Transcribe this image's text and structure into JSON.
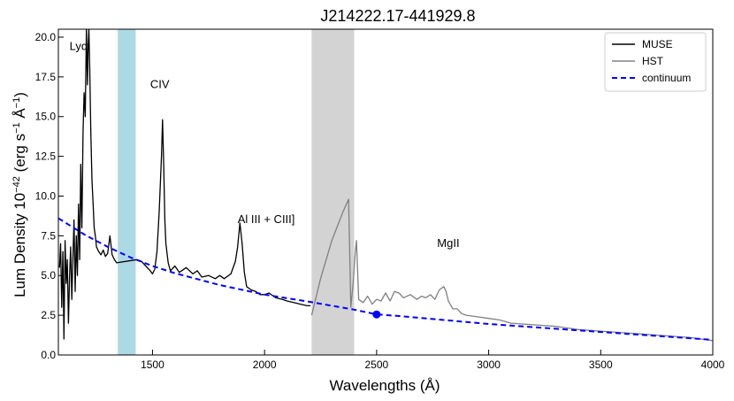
{
  "chart_data": {
    "type": "line",
    "title": "J214222.17-441929.8",
    "xlabel": "Wavelengths (Å)",
    "ylabel_main": "Lum Density 10",
    "ylabel_exp": "−42",
    "ylabel_units_pre": " (erg s",
    "ylabel_units_exp1": "−1",
    "ylabel_units_mid": " Å",
    "ylabel_units_exp2": "−1",
    "ylabel_units_post": ")",
    "xlim": [
      1080,
      4000
    ],
    "ylim": [
      0,
      20.5
    ],
    "xticks": [
      1500,
      2000,
      2500,
      3000,
      3500,
      4000
    ],
    "yticks": [
      0.0,
      2.5,
      5.0,
      7.5,
      10.0,
      12.5,
      15.0,
      17.5,
      20.0
    ],
    "ytick_labels": [
      "0.0",
      "2.5",
      "5.0",
      "7.5",
      "10.0",
      "12.5",
      "15.0",
      "17.5",
      "20.0"
    ],
    "legend_position": "top-right",
    "shaded_regions": [
      {
        "x0": 1345,
        "x1": 1425,
        "color": "#add8e6"
      },
      {
        "x0": 2210,
        "x1": 2400,
        "color": "#d3d3d3"
      }
    ],
    "annotations": [
      {
        "text": "Lyα",
        "x": 1130,
        "y": 19.2
      },
      {
        "text": "CIV",
        "x": 1490,
        "y": 16.8
      },
      {
        "text": "Al III + CIII]",
        "x": 1880,
        "y": 8.3
      },
      {
        "text": "MgII",
        "x": 2770,
        "y": 6.8
      }
    ],
    "marker": {
      "x": 2500,
      "y": 2.55,
      "color": "#0000ff"
    },
    "series": [
      {
        "name": "MUSE",
        "color": "#000000",
        "x": [
          1085,
          1090,
          1095,
          1100,
          1105,
          1110,
          1115,
          1120,
          1125,
          1130,
          1135,
          1140,
          1145,
          1150,
          1155,
          1160,
          1165,
          1170,
          1175,
          1180,
          1185,
          1190,
          1195,
          1200,
          1205,
          1210,
          1213,
          1216,
          1220,
          1225,
          1230,
          1235,
          1240,
          1245,
          1250,
          1260,
          1270,
          1280,
          1290,
          1300,
          1310,
          1320,
          1330,
          1340,
          1430,
          1450,
          1470,
          1490,
          1500,
          1510,
          1520,
          1530,
          1540,
          1545,
          1550,
          1555,
          1560,
          1570,
          1580,
          1600,
          1620,
          1650,
          1680,
          1700,
          1720,
          1750,
          1780,
          1800,
          1820,
          1850,
          1870,
          1880,
          1890,
          1900,
          1910,
          1920,
          1940,
          1960,
          1980,
          2000,
          2020,
          2050,
          2080,
          2100,
          2130,
          2160,
          2190,
          2205
        ],
        "y": [
          5.5,
          7.0,
          3.0,
          6.5,
          1.0,
          7.2,
          4.5,
          6.0,
          2.0,
          5.0,
          6.8,
          3.5,
          6.2,
          8.5,
          4.0,
          7.5,
          5.0,
          9.5,
          6.0,
          12.0,
          8.0,
          14.0,
          16.5,
          15.0,
          20.5,
          17.0,
          19.5,
          20.5,
          18.0,
          14.0,
          11.0,
          9.5,
          8.0,
          7.5,
          6.8,
          6.5,
          6.3,
          6.6,
          6.2,
          6.4,
          7.5,
          6.3,
          6.0,
          5.8,
          6.0,
          5.9,
          5.6,
          5.3,
          5.1,
          5.4,
          6.5,
          9.0,
          12.5,
          14.8,
          12.0,
          8.5,
          7.0,
          5.8,
          5.3,
          5.6,
          5.2,
          5.5,
          5.1,
          5.3,
          4.9,
          5.0,
          4.8,
          5.0,
          4.8,
          5.1,
          5.9,
          6.8,
          8.3,
          7.0,
          5.2,
          4.3,
          4.1,
          4.0,
          3.8,
          3.8,
          3.9,
          3.6,
          3.5,
          3.4,
          3.3,
          3.2,
          3.1,
          3.1
        ]
      },
      {
        "name": "HST",
        "color": "#808080",
        "x": [
          2210,
          2250,
          2300,
          2350,
          2375,
          2385,
          2395,
          2405,
          2410,
          2420,
          2440,
          2460,
          2480,
          2500,
          2520,
          2540,
          2560,
          2580,
          2600,
          2620,
          2650,
          2680,
          2700,
          2720,
          2740,
          2760,
          2780,
          2800,
          2810,
          2820,
          2840,
          2860,
          2880,
          2900,
          2950,
          3000,
          3050,
          3100,
          3200,
          3300,
          3400,
          3500,
          3600,
          3700,
          3800,
          3900,
          4000
        ],
        "y": [
          2.5,
          4.8,
          7.2,
          9.0,
          9.8,
          3.0,
          4.5,
          6.5,
          7.2,
          3.5,
          3.3,
          3.7,
          3.2,
          3.5,
          3.4,
          3.9,
          3.4,
          4.0,
          3.9,
          3.6,
          3.8,
          3.5,
          3.7,
          3.6,
          3.8,
          3.5,
          4.1,
          4.3,
          4.0,
          3.4,
          2.9,
          2.9,
          2.6,
          2.5,
          2.4,
          2.3,
          2.2,
          2.0,
          1.9,
          1.8,
          1.6,
          1.5,
          1.4,
          1.3,
          1.2,
          1.1,
          0.9
        ]
      },
      {
        "name": "continuum",
        "color": "#0000ff",
        "dashed": true,
        "x": [
          1080,
          1200,
          1300,
          1400,
          1500,
          1600,
          1800,
          2000,
          2200,
          2400,
          2500,
          2600,
          2800,
          3000,
          3200,
          3400,
          3600,
          3800,
          4000
        ],
        "y": [
          8.6,
          7.55,
          6.8,
          6.15,
          5.6,
          5.15,
          4.4,
          3.8,
          3.35,
          2.85,
          2.55,
          2.45,
          2.2,
          1.95,
          1.75,
          1.55,
          1.35,
          1.15,
          0.95
        ]
      }
    ]
  }
}
